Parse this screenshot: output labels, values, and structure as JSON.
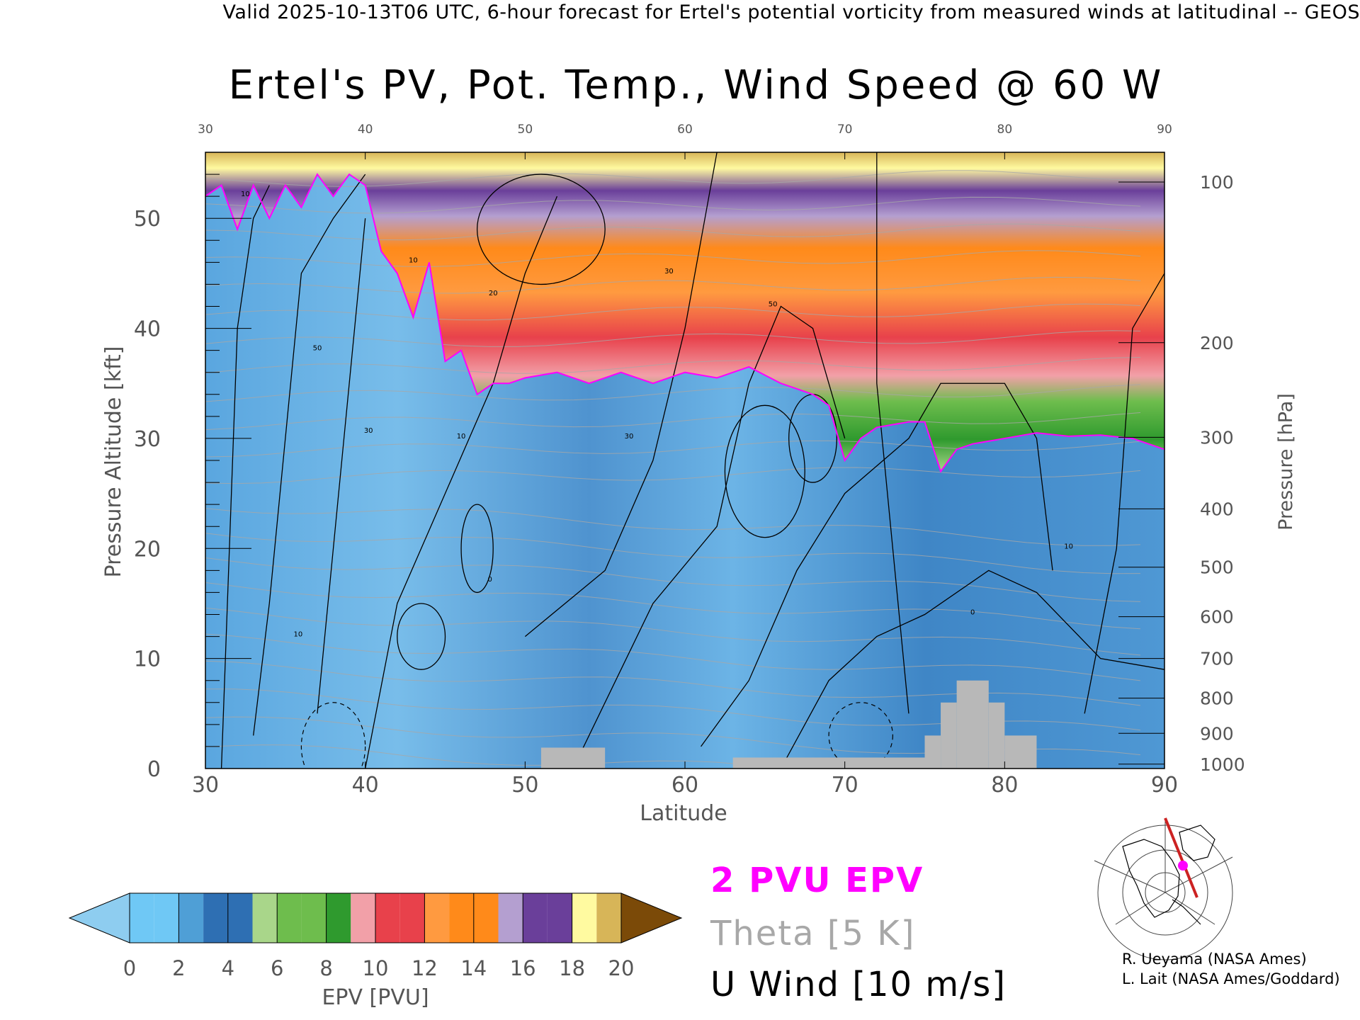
{
  "header": {
    "valid_line": "Valid 2025-10-13T06 UTC, 6-hour forecast for Ertel's potential vorticity from measured winds at latitudinal -- GEOS"
  },
  "chart_data": {
    "type": "heatmap",
    "title": "Ertel's PV, Pot. Temp., Wind Speed @ 60 W",
    "xlabel": "Latitude",
    "ylabel": "Pressure Altitude [kft]",
    "y2label": "Pressure [hPa]",
    "xlim": [
      30,
      90
    ],
    "ylim": [
      0,
      56
    ],
    "x_ticks": [
      30,
      40,
      50,
      60,
      70,
      80,
      90
    ],
    "y_ticks": [
      0,
      10,
      20,
      30,
      40,
      50
    ],
    "pressure_ticks": [
      {
        "label": "100",
        "kft": 53.3
      },
      {
        "label": "200",
        "kft": 38.7
      },
      {
        "label": "300",
        "kft": 30.1
      },
      {
        "label": "400",
        "kft": 23.6
      },
      {
        "label": "500",
        "kft": 18.3
      },
      {
        "label": "600",
        "kft": 13.8
      },
      {
        "label": "700",
        "kft": 10.0
      },
      {
        "label": "800",
        "kft": 6.4
      },
      {
        "label": "900",
        "kft": 3.2
      },
      {
        "label": "1000",
        "kft": 0.4
      }
    ],
    "tropopause_2pvu_kft": [
      [
        30,
        52
      ],
      [
        31,
        53
      ],
      [
        32,
        49
      ],
      [
        33,
        53
      ],
      [
        34,
        50
      ],
      [
        35,
        53
      ],
      [
        36,
        51
      ],
      [
        37,
        54
      ],
      [
        38,
        52
      ],
      [
        39,
        54
      ],
      [
        40,
        53
      ],
      [
        41,
        47
      ],
      [
        42,
        45
      ],
      [
        43,
        41
      ],
      [
        44,
        46
      ],
      [
        45,
        37
      ],
      [
        46,
        38
      ],
      [
        47,
        34
      ],
      [
        48,
        35
      ],
      [
        49,
        35
      ],
      [
        50,
        35.5
      ],
      [
        52,
        36
      ],
      [
        54,
        35
      ],
      [
        56,
        36
      ],
      [
        58,
        35
      ],
      [
        60,
        36
      ],
      [
        62,
        35.5
      ],
      [
        64,
        36.5
      ],
      [
        66,
        35
      ],
      [
        68,
        34
      ],
      [
        69,
        33
      ],
      [
        70,
        28
      ],
      [
        71,
        30
      ],
      [
        72,
        31
      ],
      [
        74,
        31.5
      ],
      [
        75,
        31.5
      ],
      [
        76,
        27
      ],
      [
        77,
        29
      ],
      [
        78,
        29.5
      ],
      [
        80,
        30
      ],
      [
        82,
        30.5
      ],
      [
        84,
        30.2
      ],
      [
        86,
        30.3
      ],
      [
        88,
        30
      ],
      [
        90,
        29
      ]
    ],
    "color_levels": [
      {
        "from": 0,
        "to": 2,
        "band": "blue"
      },
      {
        "from": 2,
        "to": 4,
        "band": "light green"
      },
      {
        "from": 4,
        "to": 6,
        "band": "green"
      },
      {
        "from": 6,
        "to": 8,
        "band": "pink"
      },
      {
        "from": 8,
        "to": 10,
        "band": "red"
      },
      {
        "from": 10,
        "to": 12,
        "band": "light orange"
      },
      {
        "from": 12,
        "to": 14,
        "band": "orange"
      },
      {
        "from": 14,
        "to": 16,
        "band": "lavender"
      },
      {
        "from": 16,
        "to": 18,
        "band": "purple"
      },
      {
        "from": 18,
        "to": 20,
        "band": "pale yellow"
      }
    ],
    "colorbar_label": "EPV [PVU]",
    "colorbar_ticks": [
      0,
      2,
      4,
      6,
      8,
      10,
      12,
      14,
      16,
      18,
      20
    ],
    "colorbar_colors": [
      "#6fc8f5",
      "#4f9fd6",
      "#2e6fb3",
      "#a9d68a",
      "#6ebd4d",
      "#2f9a2e",
      "#f2a0a8",
      "#e8414b",
      "#ff9a40",
      "#ff8a1a",
      "#b49fd0",
      "#6a3f9a",
      "#fffaa0",
      "#d7b558",
      "#7b4a08",
      "#8ecdf0"
    ],
    "grid": false,
    "legend": [
      {
        "label": "2 PVU EPV",
        "color": "#ff00ff"
      },
      {
        "label": "Theta [5 K]",
        "color": "#a8a8a8"
      },
      {
        "label": "U Wind [10 m/s]",
        "color": "#000000"
      }
    ],
    "contour_labels": [
      "10",
      "10",
      "10",
      "10",
      "20",
      "30",
      "30",
      "30",
      "50",
      "50",
      "0",
      "0",
      "10"
    ]
  },
  "credits": {
    "line1": "R. Ueyama (NASA Ames)",
    "line2": "L. Lait (NASA Ames/Goddard)"
  },
  "colors": {
    "tropopause": "#ff00ff",
    "theta": "#a8a8a8",
    "wind": "#000000",
    "terrain": "#b8b8b8"
  }
}
